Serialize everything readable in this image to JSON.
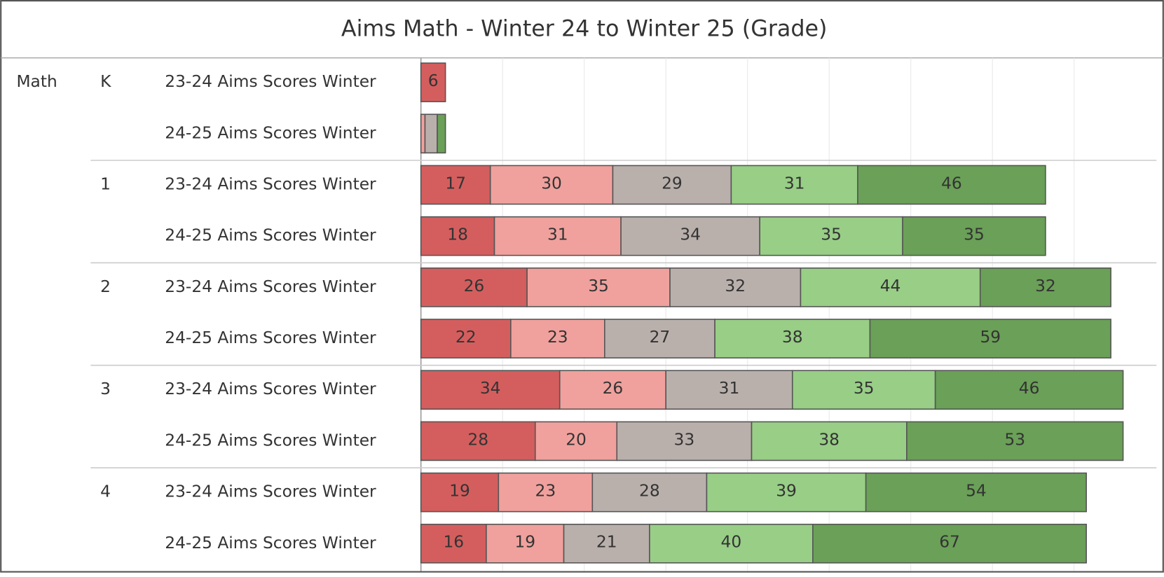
{
  "chart_data": {
    "type": "stacked-bar-horizontal",
    "title": "Aims Math - Winter 24 to Winter 25 (Grade)",
    "measure": "Math",
    "groups": [
      "K",
      "1",
      "2",
      "3",
      "4"
    ],
    "categories": [
      "23-24 Aims Scores Winter",
      "24-25 Aims Scores Winter",
      "23-24 Aims Scores Winter",
      "24-25 Aims Scores Winter",
      "23-24 Aims Scores Winter",
      "24-25 Aims Scores Winter",
      "23-24 Aims Scores Winter",
      "24-25 Aims Scores Winter",
      "23-24 Aims Scores Winter",
      "24-25 Aims Scores Winter"
    ],
    "series": [
      {
        "color": "#d45e5e",
        "values": [
          6,
          null,
          17,
          18,
          26,
          22,
          34,
          28,
          19,
          16
        ]
      },
      {
        "color": "#f0a19d",
        "values": [
          null,
          1,
          30,
          31,
          35,
          23,
          26,
          20,
          23,
          19
        ]
      },
      {
        "color": "#b9b0ac",
        "values": [
          null,
          3,
          29,
          34,
          32,
          27,
          31,
          33,
          28,
          21
        ]
      },
      {
        "color": "#98ce86",
        "values": [
          null,
          null,
          31,
          35,
          44,
          38,
          35,
          38,
          39,
          40
        ]
      },
      {
        "color": "#6aa057",
        "values": [
          null,
          2,
          46,
          35,
          32,
          59,
          46,
          53,
          54,
          67
        ]
      }
    ],
    "xlim": [
      0,
      180
    ],
    "xticks": [
      0,
      20,
      40,
      60,
      80,
      100,
      120,
      140,
      160
    ],
    "grid": true
  }
}
